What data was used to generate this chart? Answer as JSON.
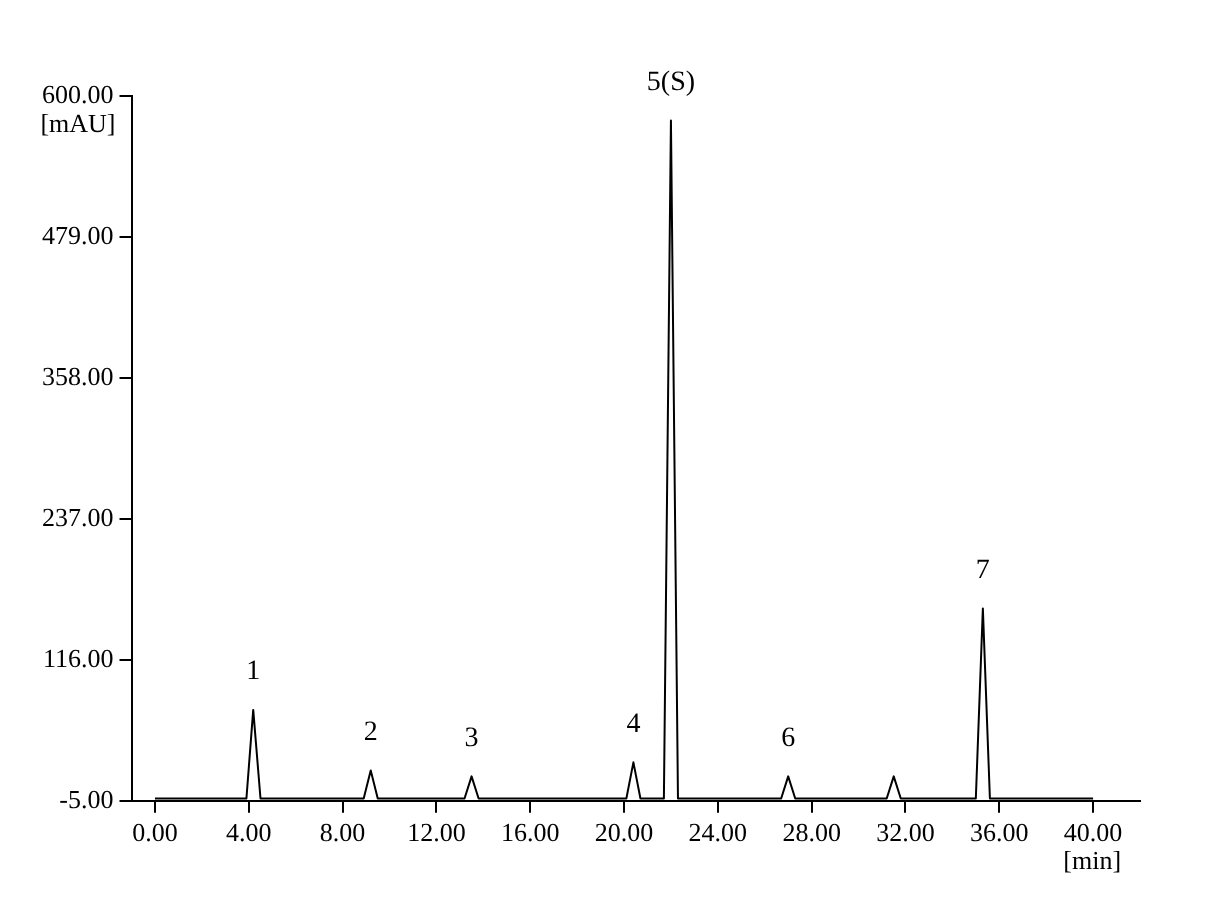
{
  "chart_data": {
    "type": "line",
    "xlabel": "[min]",
    "ylabel": "[mAU]",
    "x": [
      0,
      3.9,
      4.19,
      4.5,
      8.9,
      9.2,
      9.5,
      13.2,
      13.5,
      13.8,
      20.1,
      20.4,
      20.7,
      21.7,
      22.0,
      22.3,
      26.7,
      27.0,
      27.3,
      31.2,
      31.5,
      31.8,
      35.0,
      35.3,
      35.6,
      40
    ],
    "series": [
      {
        "color": "#000000",
        "values": [
          -3,
          -3,
          73,
          -3,
          -3,
          21,
          -3,
          -3,
          16,
          -3,
          -3,
          28,
          -3,
          -3,
          579,
          -3,
          -3,
          16,
          -3,
          -3,
          16,
          -3,
          -3,
          160,
          -3,
          -3
        ]
      }
    ],
    "xlim": [
      -1,
      42
    ],
    "ylim": [
      -5,
      600
    ],
    "xticks": [
      {
        "value": 0,
        "label": "0.00"
      },
      {
        "value": 4,
        "label": "4.00"
      },
      {
        "value": 8,
        "label": "8.00"
      },
      {
        "value": 12,
        "label": "12.00"
      },
      {
        "value": 16,
        "label": "16.00"
      },
      {
        "value": 20,
        "label": "20.00"
      },
      {
        "value": 24,
        "label": "24.00"
      },
      {
        "value": 28,
        "label": "28.00"
      },
      {
        "value": 32,
        "label": "32.00"
      },
      {
        "value": 36,
        "label": "36.00"
      },
      {
        "value": 40,
        "label": "40.00"
      }
    ],
    "yticks": [
      {
        "value": -5,
        "label": "-5.00"
      },
      {
        "value": 116,
        "label": "116.00"
      },
      {
        "value": 237,
        "label": "237.00"
      },
      {
        "value": 358,
        "label": "358.00"
      },
      {
        "value": 479,
        "label": "479.00"
      },
      {
        "value": 600,
        "label": "600.00"
      }
    ],
    "annotations": [
      {
        "text": "1",
        "x": 4.19,
        "y": 73
      },
      {
        "text": "2",
        "x": 9.2,
        "y": 21
      },
      {
        "text": "3",
        "x": 13.5,
        "y": 16
      },
      {
        "text": "4",
        "x": 20.4,
        "y": 28
      },
      {
        "text": "5(S)",
        "x": 22.0,
        "y": 579
      },
      {
        "text": "6",
        "x": 27.0,
        "y": 16
      },
      {
        "text": "7",
        "x": 35.3,
        "y": 160
      }
    ],
    "grid": false,
    "legend": false,
    "marker": "none",
    "line_style": "solid"
  }
}
